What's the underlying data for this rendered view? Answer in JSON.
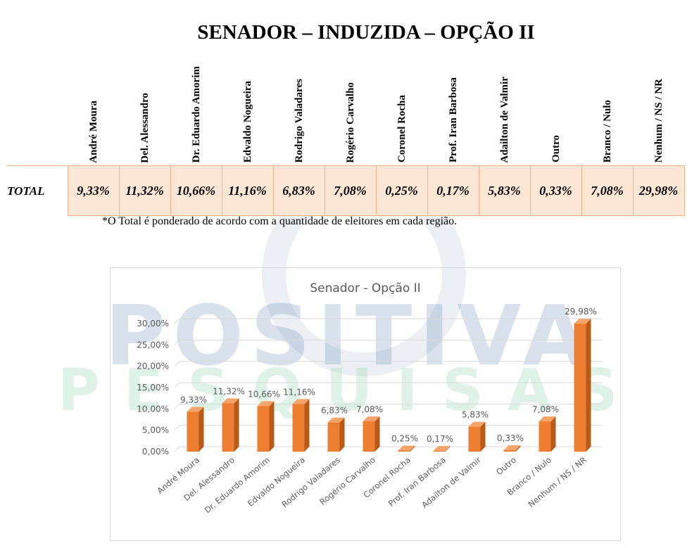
{
  "header": {
    "title": "SENADOR – INDUZIDA – OPÇÃO II"
  },
  "table": {
    "columns": [
      "André Moura",
      "Del. Alessandro",
      "Dr. Eduardo Amorim",
      "Edvaldo Nogueira",
      "Rodrigo Valadares",
      "Rogério Carvalho",
      "Coronel Rocha",
      "Prof. Iran Barbosa",
      "Adailton de Valmir",
      "Outro",
      "Branco / Nulo",
      "Nenhum / NS / NR"
    ],
    "row_label": "TOTAL",
    "values": [
      "9,33%",
      "11,32%",
      "10,66%",
      "11,16%",
      "6,83%",
      "7,08%",
      "0,25%",
      "0,17%",
      "5,83%",
      "0,33%",
      "7,08%",
      "29,98%"
    ]
  },
  "footnote": "*O Total é ponderado de acordo com a quantidade de eleitores em cada região.",
  "watermark": {
    "main": "POSITIVA",
    "sub": "PESQUISAS"
  },
  "chart_data": {
    "type": "bar",
    "title": "Senador - Opção II",
    "categories": [
      "André Moura",
      "Del. Alessandro",
      "Dr. Eduardo Amorim",
      "Edvaldo Nogueira",
      "Rodrigo Valadares",
      "Rogério Carvalho",
      "Coronel Rocha",
      "Prof. Iran Barbosa",
      "Adailton de Valmir",
      "Outro",
      "Branco / Nulo",
      "Nenhum / NS / NR"
    ],
    "values": [
      9.33,
      11.32,
      10.66,
      11.16,
      6.83,
      7.08,
      0.25,
      0.17,
      5.83,
      0.33,
      7.08,
      29.98
    ],
    "data_labels": [
      "9,33%",
      "11,32%",
      "10,66%",
      "11,16%",
      "6,83%",
      "7,08%",
      "0,25%",
      "0,17%",
      "5,83%",
      "0,33%",
      "7,08%",
      "29,98%"
    ],
    "ylim": [
      0,
      30
    ],
    "yticks": [
      0,
      5,
      10,
      15,
      20,
      25,
      30
    ],
    "ytick_labels": [
      "0,00%",
      "5,00%",
      "10,00%",
      "15,00%",
      "20,00%",
      "25,00%",
      "30,00%"
    ],
    "grid": true,
    "legend": "none",
    "colors": {
      "bar_front": "#ed7d31",
      "bar_side": "#b85a18",
      "bar_top": "#f4a46a",
      "grid": "#d9d9d9",
      "text": "#595959"
    }
  }
}
